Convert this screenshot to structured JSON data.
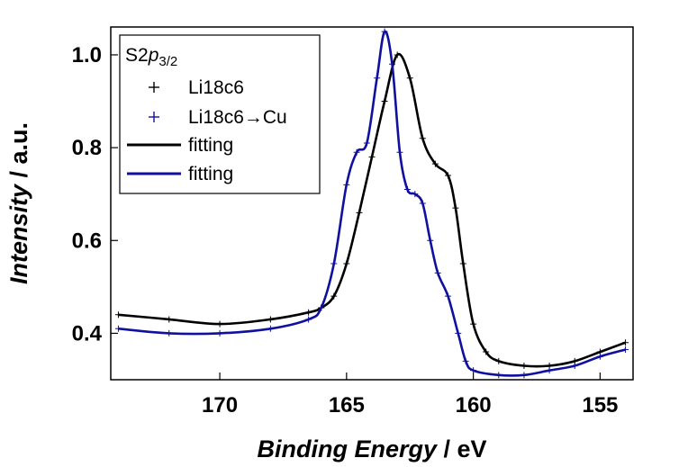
{
  "chart_data": {
    "type": "line",
    "xlabel": {
      "italic": "Binding Energy",
      "rest": " / eV"
    },
    "ylabel": {
      "italic": "Intensity",
      "rest": " / a.u."
    },
    "xlim": [
      174.3,
      153.7
    ],
    "ylim": [
      0.3,
      1.06
    ],
    "x_reversed": true,
    "x_ticks": [
      170,
      165,
      160,
      155
    ],
    "y_ticks": [
      0.4,
      0.6,
      0.8,
      1.0
    ],
    "x_tick_labels": [
      "170",
      "165",
      "160",
      "155"
    ],
    "y_tick_labels": [
      "0.4",
      "0.6",
      "0.8",
      "1.0"
    ],
    "grid": false,
    "legend": {
      "position": "top-left",
      "title_main": "S2",
      "title_italic": "p",
      "title_sub": "3/2",
      "entries": [
        "Li18c6",
        "Li18c6→Cu",
        "fitting",
        "fitting"
      ]
    },
    "series": [
      {
        "name": "Li18c6",
        "kind": "markers",
        "color": "#000000",
        "points": [
          [
            174.0,
            0.44
          ],
          [
            172.0,
            0.43
          ],
          [
            170.0,
            0.42
          ],
          [
            168.0,
            0.43
          ],
          [
            166.5,
            0.445
          ],
          [
            166.0,
            0.455
          ],
          [
            165.5,
            0.48
          ],
          [
            165.0,
            0.55
          ],
          [
            164.5,
            0.66
          ],
          [
            164.0,
            0.78
          ],
          [
            163.5,
            0.9
          ],
          [
            163.0,
            1.0
          ],
          [
            162.5,
            0.95
          ],
          [
            162.0,
            0.82
          ],
          [
            161.5,
            0.765
          ],
          [
            161.0,
            0.74
          ],
          [
            160.7,
            0.67
          ],
          [
            160.4,
            0.55
          ],
          [
            160.0,
            0.42
          ],
          [
            159.5,
            0.36
          ],
          [
            159.0,
            0.34
          ],
          [
            158.0,
            0.33
          ],
          [
            157.0,
            0.33
          ],
          [
            156.0,
            0.34
          ],
          [
            155.0,
            0.36
          ],
          [
            154.0,
            0.38
          ]
        ]
      },
      {
        "name": "Li18c6→Cu",
        "kind": "markers",
        "color": "#1010a0",
        "points": [
          [
            174.0,
            0.41
          ],
          [
            172.0,
            0.4
          ],
          [
            170.0,
            0.4
          ],
          [
            168.0,
            0.41
          ],
          [
            166.5,
            0.43
          ],
          [
            166.0,
            0.455
          ],
          [
            165.5,
            0.55
          ],
          [
            165.0,
            0.72
          ],
          [
            164.6,
            0.79
          ],
          [
            164.2,
            0.81
          ],
          [
            163.8,
            0.95
          ],
          [
            163.5,
            1.05
          ],
          [
            163.2,
            0.98
          ],
          [
            162.9,
            0.79
          ],
          [
            162.6,
            0.71
          ],
          [
            162.3,
            0.7
          ],
          [
            162.0,
            0.68
          ],
          [
            161.7,
            0.6
          ],
          [
            161.4,
            0.53
          ],
          [
            161.0,
            0.48
          ],
          [
            160.6,
            0.4
          ],
          [
            160.3,
            0.34
          ],
          [
            160.0,
            0.32
          ],
          [
            159.0,
            0.31
          ],
          [
            158.0,
            0.31
          ],
          [
            157.0,
            0.32
          ],
          [
            156.0,
            0.33
          ],
          [
            155.0,
            0.35
          ],
          [
            154.0,
            0.365
          ]
        ]
      },
      {
        "name": "fitting",
        "kind": "line",
        "color": "#000000",
        "points": [
          [
            174.0,
            0.44
          ],
          [
            172.0,
            0.43
          ],
          [
            170.0,
            0.42
          ],
          [
            168.0,
            0.43
          ],
          [
            166.5,
            0.445
          ],
          [
            166.0,
            0.455
          ],
          [
            165.5,
            0.48
          ],
          [
            165.0,
            0.55
          ],
          [
            164.5,
            0.66
          ],
          [
            164.0,
            0.78
          ],
          [
            163.5,
            0.9
          ],
          [
            163.0,
            1.0
          ],
          [
            162.5,
            0.95
          ],
          [
            162.0,
            0.82
          ],
          [
            161.5,
            0.765
          ],
          [
            161.0,
            0.74
          ],
          [
            160.7,
            0.67
          ],
          [
            160.4,
            0.55
          ],
          [
            160.0,
            0.42
          ],
          [
            159.5,
            0.36
          ],
          [
            159.0,
            0.34
          ],
          [
            158.0,
            0.33
          ],
          [
            157.0,
            0.33
          ],
          [
            156.0,
            0.34
          ],
          [
            155.0,
            0.36
          ],
          [
            154.0,
            0.38
          ]
        ]
      },
      {
        "name": "fitting",
        "kind": "line",
        "color": "#1010a0",
        "points": [
          [
            174.0,
            0.41
          ],
          [
            172.0,
            0.4
          ],
          [
            170.0,
            0.4
          ],
          [
            168.0,
            0.41
          ],
          [
            166.5,
            0.43
          ],
          [
            166.0,
            0.455
          ],
          [
            165.5,
            0.55
          ],
          [
            165.0,
            0.72
          ],
          [
            164.6,
            0.79
          ],
          [
            164.2,
            0.81
          ],
          [
            163.8,
            0.95
          ],
          [
            163.5,
            1.05
          ],
          [
            163.2,
            0.98
          ],
          [
            162.9,
            0.79
          ],
          [
            162.6,
            0.71
          ],
          [
            162.3,
            0.7
          ],
          [
            162.0,
            0.68
          ],
          [
            161.7,
            0.6
          ],
          [
            161.4,
            0.53
          ],
          [
            161.0,
            0.48
          ],
          [
            160.6,
            0.4
          ],
          [
            160.3,
            0.34
          ],
          [
            160.0,
            0.32
          ],
          [
            159.0,
            0.31
          ],
          [
            158.0,
            0.31
          ],
          [
            157.0,
            0.32
          ],
          [
            156.0,
            0.33
          ],
          [
            155.0,
            0.35
          ],
          [
            154.0,
            0.365
          ]
        ]
      }
    ]
  }
}
